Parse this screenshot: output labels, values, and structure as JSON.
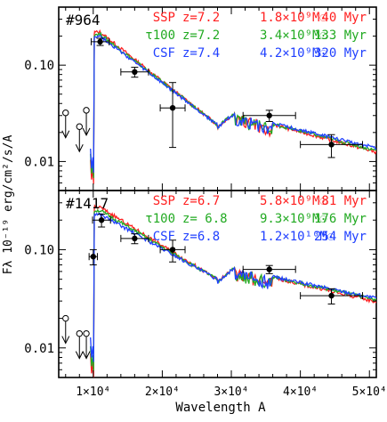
{
  "figure": {
    "ylabel": "Fλ 10⁻¹⁹ erg/cm²/s/A",
    "xlabel": "Wavelength A"
  },
  "colors": {
    "ssp": "#ff2020",
    "tau100": "#22aa22",
    "csf": "#2040ff",
    "axis": "#000000"
  },
  "chart_data": [
    {
      "type": "line",
      "id": "964",
      "title": "#964",
      "xlim": [
        5000,
        51000
      ],
      "ylim": [
        0.005,
        0.4
      ],
      "yscale": "log",
      "ytick_labels": [
        "0.10",
        "0.01"
      ],
      "ytick_values": [
        0.1,
        0.01
      ],
      "legend": [
        {
          "model": "SSP",
          "z": "z=7.2",
          "mass": "1.8×10⁹M☉",
          "age": "40 Myr",
          "color": "#ff2020"
        },
        {
          "model": "τ100",
          "z": "z=7.2",
          "mass": "3.4×10⁹M☉",
          "age": "133 Myr",
          "color": "#22aa22"
        },
        {
          "model": "CSF",
          "z": "z=7.4",
          "mass": "4.2×10⁹M☉",
          "age": "320 Myr",
          "color": "#2040ff"
        }
      ],
      "points": [
        {
          "x": 11000,
          "y": 0.175,
          "xerr": 1300,
          "ylo": 0.16,
          "yhi": 0.19
        },
        {
          "x": 16000,
          "y": 0.085,
          "xerr": 2000,
          "ylo": 0.075,
          "yhi": 0.095
        },
        {
          "x": 21500,
          "y": 0.036,
          "xerr": 1800,
          "ylo": 0.014,
          "yhi": 0.066
        },
        {
          "x": 35500,
          "y": 0.03,
          "xerr": 3800,
          "ylo": 0.026,
          "yhi": 0.034
        },
        {
          "x": 44500,
          "y": 0.015,
          "xerr": 4500,
          "ylo": 0.011,
          "yhi": 0.019
        }
      ],
      "upper_limits": [
        {
          "x": 6000,
          "y": 0.032
        },
        {
          "x": 8000,
          "y": 0.023
        },
        {
          "x": 9000,
          "y": 0.034
        }
      ]
    },
    {
      "type": "line",
      "id": "1417",
      "title": "#1417",
      "xlim": [
        5000,
        51000
      ],
      "ylim": [
        0.005,
        0.4
      ],
      "yscale": "log",
      "ytick_labels": [
        "0.10",
        "0.01"
      ],
      "ytick_values": [
        0.1,
        0.01
      ],
      "xtick_labels": [
        "1×10⁴",
        "2×10⁴",
        "3×10⁴",
        "4×10⁴",
        "5×10⁴"
      ],
      "xtick_values": [
        10000,
        20000,
        30000,
        40000,
        50000
      ],
      "legend": [
        {
          "model": "SSP",
          "z": "z=6.7",
          "mass": "5.8×10⁹M☉",
          "age": "81 Myr",
          "color": "#ff2020"
        },
        {
          "model": "τ100",
          "z": "z= 6.8",
          "mass": "9.3×10⁹M☉",
          "age": "176 Myr",
          "color": "#22aa22"
        },
        {
          "model": "CSF",
          "z": "z=6.8",
          "mass": "1.2×10¹⁰M☉",
          "age": "254 Myr",
          "color": "#2040ff"
        }
      ],
      "points": [
        {
          "x": 10000,
          "y": 0.085,
          "xerr": 600,
          "ylo": 0.07,
          "yhi": 0.1
        },
        {
          "x": 11200,
          "y": 0.2,
          "xerr": 1300,
          "ylo": 0.17,
          "yhi": 0.23
        },
        {
          "x": 16000,
          "y": 0.13,
          "xerr": 2000,
          "ylo": 0.115,
          "yhi": 0.145
        },
        {
          "x": 21500,
          "y": 0.1,
          "xerr": 1800,
          "ylo": 0.075,
          "yhi": 0.125
        },
        {
          "x": 35500,
          "y": 0.063,
          "xerr": 3800,
          "ylo": 0.057,
          "yhi": 0.069
        },
        {
          "x": 44500,
          "y": 0.034,
          "xerr": 4500,
          "ylo": 0.028,
          "yhi": 0.04
        }
      ],
      "upper_limits": [
        {
          "x": 6000,
          "y": 0.02
        },
        {
          "x": 8000,
          "y": 0.014
        },
        {
          "x": 9000,
          "y": 0.014
        }
      ]
    }
  ]
}
